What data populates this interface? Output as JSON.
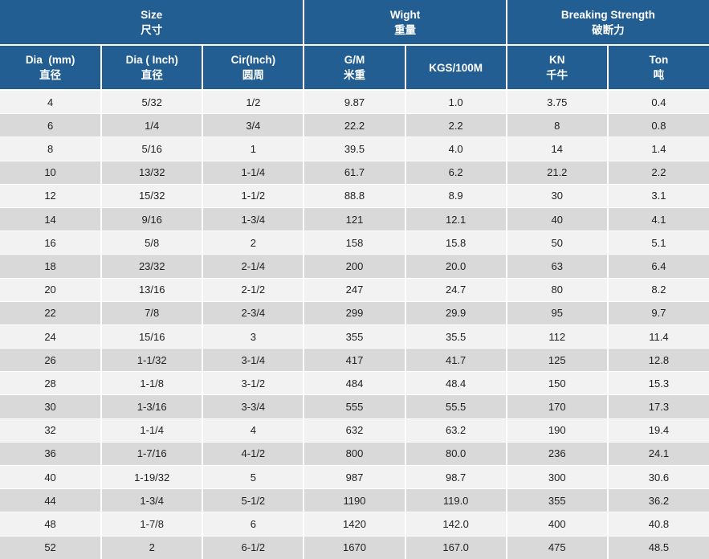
{
  "colors": {
    "header_bg": "#235e92",
    "header_text": "#ffffff",
    "row_light": "#f2f2f2",
    "row_dark": "#d9d9d9",
    "border": "#ffffff",
    "body_text": "#1f1f1f"
  },
  "table": {
    "groups": [
      {
        "en": "Size",
        "zh": "尺寸",
        "span": 3
      },
      {
        "en": "Wight",
        "zh": "重量",
        "span": 2
      },
      {
        "en": "Breaking Strength",
        "zh": "破断力",
        "span": 2
      }
    ],
    "columns": [
      {
        "en": "Dia  (mm)",
        "zh": "直径"
      },
      {
        "en": "Dia ( Inch)",
        "zh": "直径"
      },
      {
        "en": "Cir(Inch)",
        "zh": "圆周"
      },
      {
        "en": "G/M",
        "zh": "米重"
      },
      {
        "en": "KGS/100M",
        "zh": ""
      },
      {
        "en": "KN",
        "zh": "千牛"
      },
      {
        "en": "Ton",
        "zh": "吨"
      }
    ],
    "rows": [
      [
        "4",
        "5/32",
        "1/2",
        "9.87",
        "1.0",
        "3.75",
        "0.4"
      ],
      [
        "6",
        "1/4",
        "3/4",
        "22.2",
        "2.2",
        "8",
        "0.8"
      ],
      [
        "8",
        "5/16",
        "1",
        "39.5",
        "4.0",
        "14",
        "1.4"
      ],
      [
        "10",
        "13/32",
        "1-1/4",
        "61.7",
        "6.2",
        "21.2",
        "2.2"
      ],
      [
        "12",
        "15/32",
        "1-1/2",
        "88.8",
        "8.9",
        "30",
        "3.1"
      ],
      [
        "14",
        "9/16",
        "1-3/4",
        "121",
        "12.1",
        "40",
        "4.1"
      ],
      [
        "16",
        "5/8",
        "2",
        "158",
        "15.8",
        "50",
        "5.1"
      ],
      [
        "18",
        "23/32",
        "2-1/4",
        "200",
        "20.0",
        "63",
        "6.4"
      ],
      [
        "20",
        "13/16",
        "2-1/2",
        "247",
        "24.7",
        "80",
        "8.2"
      ],
      [
        "22",
        "7/8",
        "2-3/4",
        "299",
        "29.9",
        "95",
        "9.7"
      ],
      [
        "24",
        "15/16",
        "3",
        "355",
        "35.5",
        "112",
        "11.4"
      ],
      [
        "26",
        "1-1/32",
        "3-1/4",
        "417",
        "41.7",
        "125",
        "12.8"
      ],
      [
        "28",
        "1-1/8",
        "3-1/2",
        "484",
        "48.4",
        "150",
        "15.3"
      ],
      [
        "30",
        "1-3/16",
        "3-3/4",
        "555",
        "55.5",
        "170",
        "17.3"
      ],
      [
        "32",
        "1-1/4",
        "4",
        "632",
        "63.2",
        "190",
        "19.4"
      ],
      [
        "36",
        "1-7/16",
        "4-1/2",
        "800",
        "80.0",
        "236",
        "24.1"
      ],
      [
        "40",
        "1-19/32",
        "5",
        "987",
        "98.7",
        "300",
        "30.6"
      ],
      [
        "44",
        "1-3/4",
        "5-1/2",
        "1190",
        "119.0",
        "355",
        "36.2"
      ],
      [
        "48",
        "1-7/8",
        "6",
        "1420",
        "142.0",
        "400",
        "40.8"
      ],
      [
        "52",
        "2",
        "6-1/2",
        "1670",
        "167.0",
        "475",
        "48.5"
      ]
    ]
  }
}
